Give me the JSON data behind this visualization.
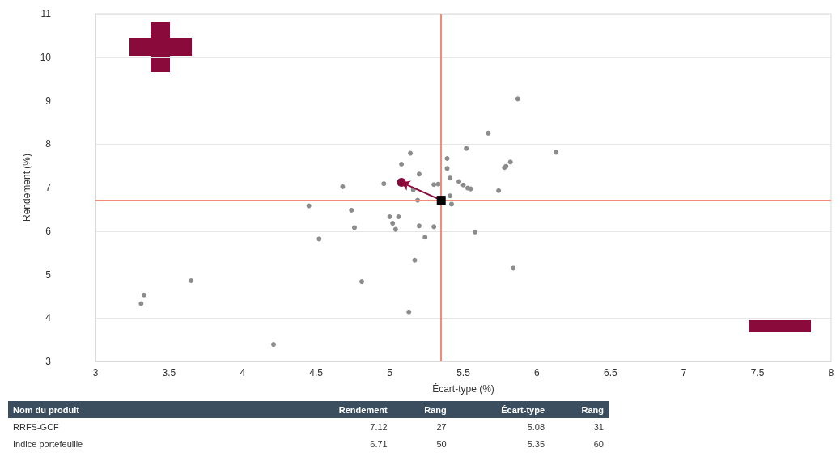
{
  "chart_data": {
    "type": "scatter",
    "xlabel": "Écart-type (%)",
    "ylabel": "Rendement (%)",
    "xlim": [
      3,
      8
    ],
    "xticks": [
      3,
      3.5,
      4,
      4.5,
      5,
      5.5,
      6,
      6.5,
      7,
      7.5,
      8
    ],
    "ylim": [
      3,
      11
    ],
    "yticks": [
      3,
      4,
      5,
      6,
      7,
      8,
      9,
      10,
      11
    ],
    "grid": "y",
    "series": [
      {
        "color": "#8c8c8c",
        "marker": "circle",
        "x": [
          5.87,
          5.67,
          5.52,
          6.13,
          5.14,
          5.39,
          5.08,
          5.39,
          5.82,
          5.79,
          5.78,
          5.2,
          5.41,
          5.47,
          5.5,
          5.53,
          5.55,
          5.74,
          4.96,
          4.68,
          5.3,
          5.33,
          5.16,
          5.41,
          5.19,
          5.42,
          4.74,
          5.0,
          5.06,
          5.02,
          4.76,
          5.04,
          5.2,
          5.3,
          5.58,
          5.24,
          4.52,
          5.17,
          5.84,
          4.81,
          5.13,
          4.45,
          3.65,
          3.33,
          3.31,
          4.21
        ],
        "values": [
          9.04,
          8.25,
          7.9,
          7.81,
          7.79,
          7.67,
          7.54,
          7.44,
          7.59,
          7.49,
          7.46,
          7.31,
          7.22,
          7.14,
          7.06,
          6.99,
          6.97,
          6.93,
          7.09,
          7.02,
          7.07,
          7.08,
          6.95,
          6.81,
          6.71,
          6.62,
          6.48,
          6.33,
          6.33,
          6.18,
          6.08,
          6.04,
          6.12,
          6.1,
          5.98,
          5.86,
          5.82,
          5.33,
          5.15,
          4.84,
          4.14,
          6.58,
          4.86,
          4.53,
          4.33,
          3.39
        ]
      },
      {
        "color": "#8b0a3c",
        "marker": "circle",
        "x": [
          5.08
        ],
        "values": [
          7.12
        ]
      },
      {
        "color": "#000000",
        "marker": "square",
        "x": [
          5.35
        ],
        "values": [
          6.71
        ]
      }
    ],
    "ref_lines": [
      {
        "axis": "x",
        "value": 5.35,
        "color": "#f28c78"
      },
      {
        "axis": "y",
        "value": 6.71,
        "color": "#f28c78"
      }
    ],
    "annotations": [
      "Nom du produit",
      "Rendement",
      "Rang",
      "Écart-type",
      "Rang",
      "RRFS-GCF",
      "7.12",
      "27",
      "5.08",
      "31",
      "Indice portefeuille",
      "6.71",
      "50",
      "5.35",
      "60"
    ]
  }
}
